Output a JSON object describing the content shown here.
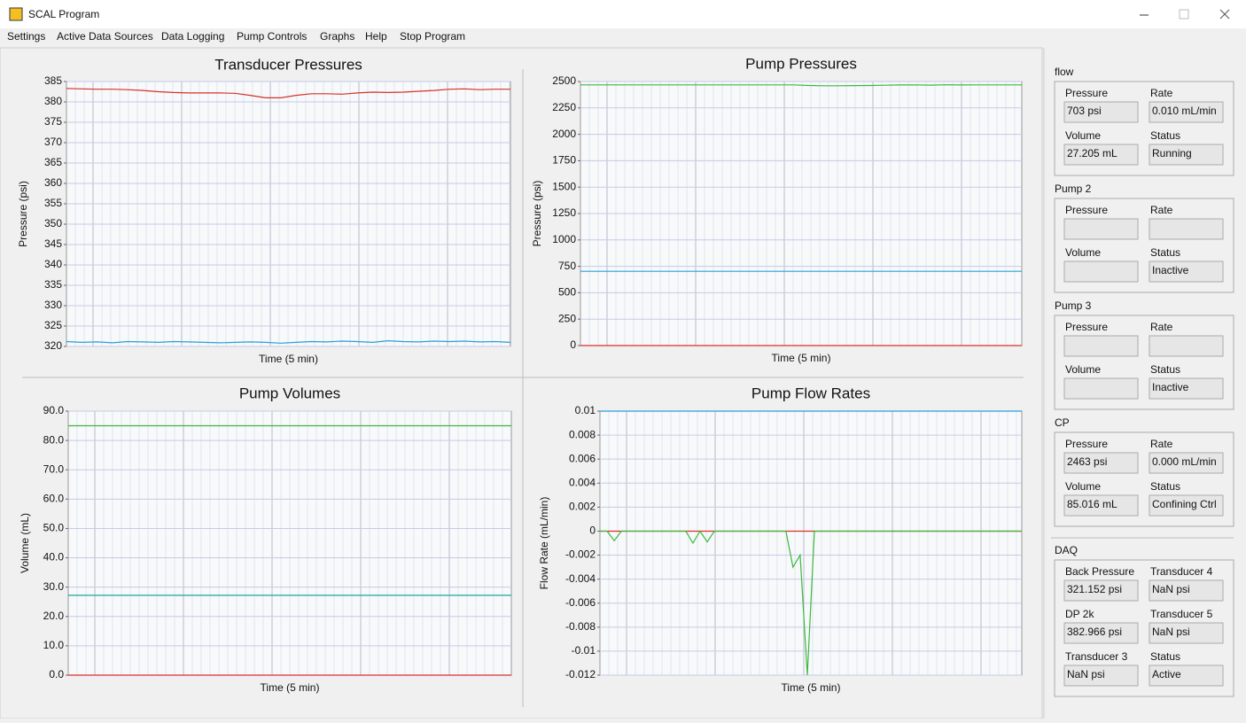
{
  "window": {
    "title": "SCAL Program"
  },
  "menu": [
    "Settings",
    "Active Data Sources",
    "Data Logging",
    "Pump Controls",
    "Graphs",
    "Help",
    "Stop Program"
  ],
  "chart_data": [
    {
      "type": "line",
      "title": "Transducer Pressures",
      "xlabel": "Time (5 min)",
      "ylabel": "Pressure (psi)",
      "ylim": [
        320,
        385
      ],
      "yticks": [
        320,
        325,
        330,
        335,
        340,
        345,
        350,
        355,
        360,
        365,
        370,
        375,
        380,
        385
      ],
      "grid": true,
      "series": [
        {
          "color": "#d9302c",
          "values": [
            383.3,
            383.2,
            383.1,
            383.1,
            383,
            382.8,
            382.5,
            382.3,
            382.2,
            382.2,
            382.2,
            382.1,
            381.6,
            381,
            381,
            381.6,
            382,
            382,
            381.9,
            382.2,
            382.4,
            382.3,
            382.4,
            382.6,
            382.8,
            383.1,
            383.2,
            383,
            383.1,
            383.1
          ]
        },
        {
          "color": "#2a9fd8",
          "values": [
            321.2,
            321,
            321.1,
            320.9,
            321.2,
            321.1,
            321,
            321.2,
            321.1,
            321,
            320.9,
            321,
            321.1,
            321,
            320.8,
            321,
            321.2,
            321.1,
            321.3,
            321.2,
            321,
            321.4,
            321.2,
            321.1,
            321.3,
            321.2,
            321.3,
            321.1,
            321.2,
            321
          ]
        }
      ]
    },
    {
      "type": "line",
      "title": "Pump Pressures",
      "xlabel": "Time (5 min)",
      "ylabel": "Pressure (psi)",
      "ylim": [
        0,
        2500
      ],
      "yticks": [
        0,
        250,
        500,
        750,
        1000,
        1250,
        1500,
        1750,
        2000,
        2250,
        2500
      ],
      "grid": true,
      "series": [
        {
          "color": "#3cb83c",
          "values": [
            2468,
            2468,
            2468,
            2468,
            2468,
            2468,
            2468,
            2468,
            2468,
            2468,
            2468,
            2468,
            2468,
            2468,
            2468,
            2462,
            2460,
            2460,
            2461,
            2462,
            2465,
            2467,
            2468,
            2466,
            2469,
            2467,
            2468,
            2468,
            2468,
            2468
          ]
        },
        {
          "color": "#2a9fd8",
          "values": [
            703,
            703,
            703,
            703,
            703,
            703,
            703,
            703,
            703,
            703,
            703,
            703,
            703,
            703,
            703,
            703,
            703,
            703,
            703,
            703,
            703,
            703,
            703,
            703,
            703,
            703,
            703,
            703,
            703,
            703
          ]
        },
        {
          "color": "#d9302c",
          "values": [
            0,
            0,
            0,
            0,
            0,
            0,
            0,
            0,
            0,
            0,
            0,
            0,
            0,
            0,
            0,
            0,
            0,
            0,
            0,
            0,
            0,
            0,
            0,
            0,
            0,
            0,
            0,
            0,
            0,
            0
          ]
        }
      ]
    },
    {
      "type": "line",
      "title": "Pump Volumes",
      "xlabel": "Time (5 min)",
      "ylabel": "Volume (mL)",
      "ylim": [
        0,
        90
      ],
      "yticks": [
        {
          "value": 0,
          "label": "0.0"
        },
        {
          "value": 10,
          "label": "10.0"
        },
        {
          "value": 20,
          "label": "20.0"
        },
        {
          "value": 30,
          "label": "30.0"
        },
        {
          "value": 40,
          "label": "40.0"
        },
        {
          "value": 50,
          "label": "50.0"
        },
        {
          "value": 60,
          "label": "60.0"
        },
        {
          "value": 70,
          "label": "70.0"
        },
        {
          "value": 80,
          "label": "80.0"
        },
        {
          "value": 90,
          "label": "90.0"
        }
      ],
      "grid": true,
      "series": [
        {
          "color": "#3cb83c",
          "values": [
            85.016,
            85.016,
            85.016,
            85.016,
            85.016,
            85.016,
            85.016,
            85.016,
            85.016,
            85.016
          ]
        },
        {
          "color": "#1fa3a0",
          "values": [
            27.205,
            27.205,
            27.205,
            27.205,
            27.205,
            27.205,
            27.205,
            27.205,
            27.205,
            27.205
          ]
        },
        {
          "color": "#d9302c",
          "values": [
            0,
            0,
            0,
            0,
            0,
            0,
            0,
            0,
            0,
            0
          ]
        }
      ]
    },
    {
      "type": "line",
      "title": "Pump Flow Rates",
      "xlabel": "Time (5 min)",
      "ylabel": "Flow Rate (mL/min)",
      "ylim": [
        -0.012,
        0.01
      ],
      "yticks": [
        -0.012,
        -0.01,
        -0.008,
        -0.006,
        -0.004,
        -0.002,
        0,
        0.002,
        0.004,
        0.006,
        0.008,
        0.01
      ],
      "grid": true,
      "series": [
        {
          "color": "#2a9fd8",
          "values": [
            0.01,
            0.01,
            0.01,
            0.01,
            0.01,
            0.01,
            0.01,
            0.01,
            0.01,
            0.01
          ]
        },
        {
          "color": "#d9302c",
          "values": [
            0,
            0,
            0,
            0,
            0,
            0,
            0,
            0,
            0,
            0
          ]
        },
        {
          "color": "#3cb83c",
          "values": [
            0,
            0,
            -0.0008,
            0,
            0,
            0,
            0,
            0,
            0,
            0,
            0,
            0,
            0,
            -0.001,
            0,
            -0.0009,
            0,
            0,
            0,
            0,
            0,
            0,
            0,
            0,
            0,
            0,
            0,
            -0.003,
            -0.002,
            -0.012,
            0,
            0,
            0,
            0,
            0,
            0,
            0,
            0,
            0,
            0,
            0,
            0,
            0,
            0,
            0,
            0,
            0,
            0,
            0,
            0,
            0,
            0,
            0,
            0,
            0,
            0,
            0,
            0,
            0,
            0
          ]
        }
      ]
    }
  ],
  "panel": {
    "groups": [
      {
        "title": "flow",
        "fields": [
          {
            "label": "Pressure",
            "value": "703 psi"
          },
          {
            "label": "Rate",
            "value": "0.010 mL/min"
          },
          {
            "label": "Volume",
            "value": "27.205 mL"
          },
          {
            "label": "Status",
            "value": "Running"
          }
        ]
      },
      {
        "title": "Pump 2",
        "fields": [
          {
            "label": "Pressure"
          },
          {
            "label": "Rate"
          },
          {
            "label": "Volume"
          },
          {
            "label": "Status",
            "value": "Inactive"
          }
        ]
      },
      {
        "title": "Pump 3",
        "fields": [
          {
            "label": "Pressure"
          },
          {
            "label": "Rate"
          },
          {
            "label": "Volume"
          },
          {
            "label": "Status",
            "value": "Inactive"
          }
        ]
      },
      {
        "title": "CP",
        "fields": [
          {
            "label": "Pressure",
            "value": "2463 psi"
          },
          {
            "label": "Rate",
            "value": "0.000 mL/min"
          },
          {
            "label": "Volume",
            "value": "85.016 mL"
          },
          {
            "label": "Status",
            "value": "Confining Ctrl"
          }
        ]
      },
      {
        "title": "DAQ",
        "fields": [
          {
            "label": "Back Pressure",
            "value": "321.152 psi"
          },
          {
            "label": "Transducer 4",
            "value": "NaN psi"
          },
          {
            "label": "DP 2k",
            "value": "382.966 psi"
          },
          {
            "label": "Transducer 5",
            "value": "NaN psi"
          },
          {
            "label": "Transducer 3",
            "value": "NaN psi"
          },
          {
            "label": "Status",
            "value": "Active"
          }
        ]
      }
    ]
  }
}
